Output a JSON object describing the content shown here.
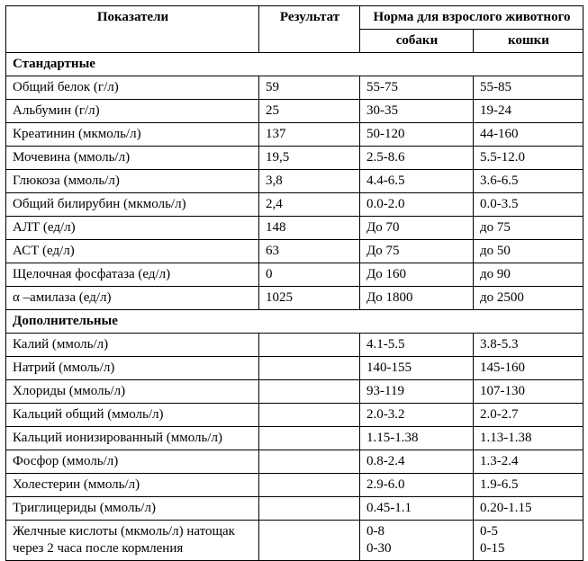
{
  "table": {
    "headers": {
      "parameter": "Показатели",
      "result": "Результат",
      "norm_group": "Норма для взрослого животного",
      "dog": "собаки",
      "cat": "кошки"
    },
    "sections": [
      {
        "title": "Стандартные",
        "rows": [
          {
            "name": "Общий белок (г/л)",
            "result": "59",
            "dog": "55-75",
            "cat": "55-85"
          },
          {
            "name": "Альбумин (г/л)",
            "result": "25",
            "dog": "30-35",
            "cat": "19-24"
          },
          {
            "name": "Креатинин (мкмоль/л)",
            "result": "137",
            "dog": "50-120",
            "cat": "44-160"
          },
          {
            "name": "Мочевина (ммоль/л)",
            "result": "19,5",
            "dog": "2.5-8.6",
            "cat": "5.5-12.0"
          },
          {
            "name": "Глюкоза (ммоль/л)",
            "result": "3,8",
            "dog": "4.4-6.5",
            "cat": "3.6-6.5"
          },
          {
            "name": "Общий билирубин (мкмоль/л)",
            "result": "2,4",
            "dog": "0.0-2.0",
            "cat": "0.0-3.5"
          },
          {
            "name": "АЛТ (ед/л)",
            "result": "148",
            "dog": "До 70",
            "cat": "до 75"
          },
          {
            "name": "АСТ (ед/л)",
            "result": "63",
            "dog": "До 75",
            "cat": "до 50"
          },
          {
            "name": "Щелочная фосфатаза (ед/л)",
            "result": "0",
            "dog": "До 160",
            "cat": "до 90"
          },
          {
            "name": "α –амилаза (ед/л)",
            "result": "1025",
            "dog": "До 1800",
            "cat": "до 2500"
          }
        ]
      },
      {
        "title": "Дополнительные",
        "rows": [
          {
            "name": "Калий (ммоль/л)",
            "result": "",
            "dog": "4.1-5.5",
            "cat": "3.8-5.3"
          },
          {
            "name": "Натрий (ммоль/л)",
            "result": "",
            "dog": "140-155",
            "cat": "145-160"
          },
          {
            "name": "Хлориды (ммоль/л)",
            "result": "",
            "dog": "93-119",
            "cat": "107-130"
          },
          {
            "name": "Кальций общий (ммоль/л)",
            "result": "",
            "dog": "2.0-3.2",
            "cat": "2.0-2.7"
          },
          {
            "name": "Кальций ионизированный (ммоль/л)",
            "result": "",
            "dog": "1.15-1.38",
            "cat": "1.13-1.38"
          },
          {
            "name": "Фосфор (ммоль/л)",
            "result": "",
            "dog": "0.8-2.4",
            "cat": "1.3-2.4"
          },
          {
            "name": "Холестерин (ммоль/л)",
            "result": "",
            "dog": "2.9-6.0",
            "cat": "1.9-6.5"
          },
          {
            "name": "Триглицериды (ммоль/л)",
            "result": "",
            "dog": "0.45-1.1",
            "cat": "0.20-1.15"
          },
          {
            "name": "Желчные кислоты (мкмоль/л) натощак\nчерез 2 часа после кормления",
            "result": "",
            "dog": "0-8\n0-30",
            "cat": "0-5\n0-15"
          }
        ]
      }
    ]
  }
}
